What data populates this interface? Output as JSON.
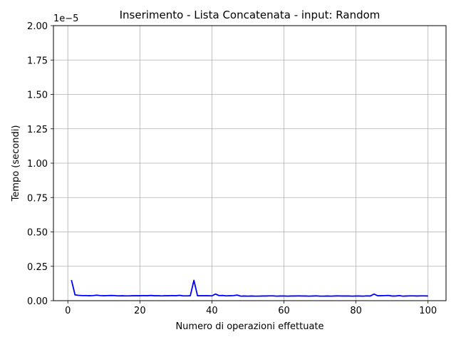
{
  "chart_data": {
    "type": "line",
    "title": "Inserimento - Lista Concatenata - input: Random",
    "xlabel": "Numero di operazioni effettuate",
    "ylabel": "Tempo (secondi)",
    "y_offset_text": "1e−5",
    "xlim": [
      -4,
      105
    ],
    "ylim": [
      0,
      2e-05
    ],
    "xticks": [
      0,
      20,
      40,
      60,
      80,
      100
    ],
    "xtick_labels": [
      "0",
      "20",
      "40",
      "60",
      "80",
      "100"
    ],
    "yticks": [
      0,
      2.5e-06,
      5e-06,
      7.5e-06,
      1e-05,
      1.25e-05,
      1.5e-05,
      1.75e-05,
      2e-05
    ],
    "ytick_labels": [
      "0.00",
      "0.25",
      "0.50",
      "0.75",
      "1.00",
      "1.25",
      "1.50",
      "1.75",
      "2.00"
    ],
    "grid": true,
    "line_color": "#0000ff",
    "x": [
      1,
      2,
      3,
      4,
      5,
      6,
      7,
      8,
      9,
      10,
      11,
      12,
      13,
      14,
      15,
      16,
      17,
      18,
      19,
      20,
      21,
      22,
      23,
      24,
      25,
      26,
      27,
      28,
      29,
      30,
      31,
      32,
      33,
      34,
      35,
      36,
      37,
      38,
      39,
      40,
      41,
      42,
      43,
      44,
      45,
      46,
      47,
      48,
      49,
      50,
      51,
      52,
      53,
      54,
      55,
      56,
      57,
      58,
      59,
      60,
      61,
      62,
      63,
      64,
      65,
      66,
      67,
      68,
      69,
      70,
      71,
      72,
      73,
      74,
      75,
      76,
      77,
      78,
      79,
      80,
      81,
      82,
      83,
      84,
      85,
      86,
      87,
      88,
      89,
      90,
      91,
      92,
      93,
      94,
      95,
      96,
      97,
      98,
      99,
      100
    ],
    "y": [
      1.5e-06,
      4.2e-07,
      3.9e-07,
      3.7e-07,
      3.7e-07,
      3.6e-07,
      3.7e-07,
      4e-07,
      3.7e-07,
      3.6e-07,
      3.7e-07,
      3.8e-07,
      3.7e-07,
      3.5e-07,
      3.6e-07,
      3.5e-07,
      3.5e-07,
      3.6e-07,
      3.6e-07,
      3.6e-07,
      3.7e-07,
      3.6e-07,
      3.8e-07,
      3.6e-07,
      3.6e-07,
      3.5e-07,
      3.6e-07,
      3.6e-07,
      3.7e-07,
      3.6e-07,
      3.9e-07,
      3.5e-07,
      3.5e-07,
      3.6e-07,
      1.48e-06,
      3.6e-07,
      3.6e-07,
      3.6e-07,
      3.6e-07,
      3.5e-07,
      4.8e-07,
      3.7e-07,
      3.8e-07,
      3.5e-07,
      3.6e-07,
      3.7e-07,
      4.1e-07,
      3.3e-07,
      3.4e-07,
      3.3e-07,
      3.4e-07,
      3.3e-07,
      3.3e-07,
      3.4e-07,
      3.4e-07,
      3.5e-07,
      3.5e-07,
      3.3e-07,
      3.4e-07,
      3.4e-07,
      3.3e-07,
      3.4e-07,
      3.4e-07,
      3.5e-07,
      3.4e-07,
      3.4e-07,
      3.3e-07,
      3.4e-07,
      3.5e-07,
      3.3e-07,
      3.3e-07,
      3.4e-07,
      3.3e-07,
      3.4e-07,
      3.5e-07,
      3.4e-07,
      3.4e-07,
      3.4e-07,
      3.3e-07,
      3.4e-07,
      3.4e-07,
      3.3e-07,
      3.5e-07,
      3.4e-07,
      4.8e-07,
      3.6e-07,
      3.6e-07,
      3.7e-07,
      3.8e-07,
      3.4e-07,
      3.4e-07,
      3.7e-07,
      3.3e-07,
      3.4e-07,
      3.5e-07,
      3.5e-07,
      3.4e-07,
      3.5e-07,
      3.5e-07,
      3.4e-07
    ]
  }
}
